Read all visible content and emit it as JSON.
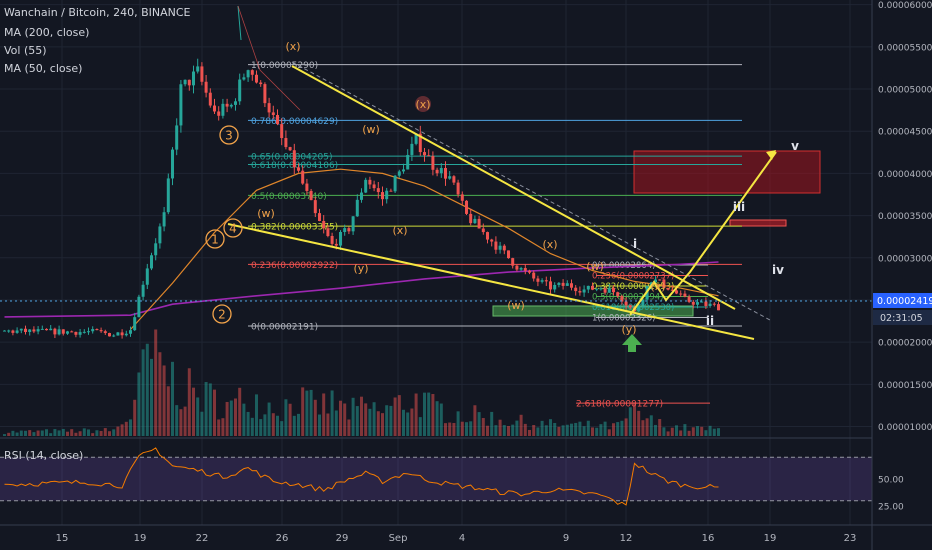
{
  "header": {
    "title": "Wanchain / Bitcoin, 240, BINANCE",
    "indicators": [
      "MA (200, close)",
      "Vol (55)",
      "MA (50, close)"
    ]
  },
  "rsi_panel": {
    "label": "RSI (14, close)",
    "ticks": [
      "50.00",
      "25.00"
    ]
  },
  "price_labels": {
    "current": "0.00002419",
    "countdown": "02:31:05"
  },
  "colors": {
    "background": "#131722",
    "up": "#26a69a",
    "down": "#ef5350",
    "trendline": "#f5e642",
    "ma200": "#9c27b0",
    "ma50": "#e0862a",
    "wave": "#f0a24a",
    "rsi": "#f57c00",
    "rsi_band": "#7e57c2"
  },
  "chart_data": {
    "type": "candlestick",
    "symbol": "Wanchain / Bitcoin",
    "interval": "240",
    "exchange": "BINANCE",
    "x_ticks": [
      "15",
      "19",
      "22",
      "26",
      "29",
      "Sep",
      "4",
      "9",
      "12",
      "16",
      "19",
      "23"
    ],
    "y_ticks": [
      "0.00006000",
      "0.00005500",
      "0.00005000",
      "0.00004500",
      "0.00004000",
      "0.00003500",
      "0.00003000",
      "0.00002500",
      "0.00002000",
      "0.00001500",
      "0.00001000"
    ],
    "ylim": [
      6.7e-06,
      6.02e-05
    ],
    "price_path": [
      [
        0,
        2.13e-05
      ],
      [
        22,
        2.12e-05
      ],
      [
        26,
        2.09e-05
      ],
      [
        30,
        2.15e-05
      ],
      [
        34,
        2.9e-05
      ],
      [
        38,
        3.5e-05
      ],
      [
        42,
        5e-05
      ],
      [
        46,
        5.2e-05
      ],
      [
        50,
        4.7e-05
      ],
      [
        54,
        4.8e-05
      ],
      [
        58,
        5.29e-05
      ],
      [
        62,
        4.9e-05
      ],
      [
        66,
        4.4e-05
      ],
      [
        70,
        4e-05
      ],
      [
        74,
        3.5e-05
      ],
      [
        78,
        3.15e-05
      ],
      [
        82,
        3.35e-05
      ],
      [
        86,
        3.95e-05
      ],
      [
        90,
        3.7e-05
      ],
      [
        94,
        4e-05
      ],
      [
        98,
        4.4e-05
      ],
      [
        102,
        4.1e-05
      ],
      [
        106,
        3.95e-05
      ],
      [
        110,
        3.5e-05
      ],
      [
        114,
        3.3e-05
      ],
      [
        118,
        3.1e-05
      ],
      [
        122,
        2.9e-05
      ],
      [
        126,
        2.75e-05
      ],
      [
        130,
        2.65e-05
      ],
      [
        134,
        2.68e-05
      ],
      [
        138,
        2.62e-05
      ],
      [
        142,
        2.65e-05
      ],
      [
        146,
        2.58e-05
      ],
      [
        150,
        2.35e-05
      ],
      [
        154,
        2.75e-05
      ],
      [
        158,
        2.65e-05
      ],
      [
        162,
        2.5e-05
      ],
      [
        166,
        2.45e-05
      ],
      [
        170,
        2.42e-05
      ]
    ],
    "volume_path": [
      [
        0,
        0.05
      ],
      [
        26,
        0.07
      ],
      [
        30,
        0.25
      ],
      [
        32,
        0.55
      ],
      [
        34,
        1.0
      ],
      [
        38,
        0.8
      ],
      [
        42,
        0.6
      ],
      [
        46,
        0.5
      ],
      [
        50,
        0.45
      ],
      [
        54,
        0.35
      ],
      [
        58,
        0.5
      ],
      [
        62,
        0.4
      ],
      [
        66,
        0.35
      ],
      [
        70,
        0.45
      ],
      [
        74,
        0.35
      ],
      [
        78,
        0.4
      ],
      [
        82,
        0.3
      ],
      [
        86,
        0.35
      ],
      [
        90,
        0.3
      ],
      [
        94,
        0.4
      ],
      [
        98,
        0.45
      ],
      [
        102,
        0.35
      ],
      [
        106,
        0.3
      ],
      [
        110,
        0.25
      ],
      [
        114,
        0.25
      ],
      [
        118,
        0.2
      ],
      [
        122,
        0.18
      ],
      [
        126,
        0.15
      ],
      [
        130,
        0.14
      ],
      [
        134,
        0.13
      ],
      [
        138,
        0.13
      ],
      [
        142,
        0.12
      ],
      [
        146,
        0.12
      ],
      [
        150,
        0.3
      ],
      [
        152,
        0.22
      ],
      [
        154,
        0.18
      ],
      [
        158,
        0.12
      ],
      [
        162,
        0.1
      ],
      [
        170,
        0.08
      ]
    ],
    "ma200_path": [
      [
        0,
        2.3e-05
      ],
      [
        30,
        2.32e-05
      ],
      [
        40,
        2.45e-05
      ],
      [
        60,
        2.55e-05
      ],
      [
        80,
        2.64e-05
      ],
      [
        100,
        2.75e-05
      ],
      [
        120,
        2.83e-05
      ],
      [
        140,
        2.88e-05
      ],
      [
        160,
        2.92e-05
      ],
      [
        170,
        2.95e-05
      ]
    ],
    "ma50_path": [
      [
        30,
        2.15e-05
      ],
      [
        40,
        2.7e-05
      ],
      [
        50,
        3.3e-05
      ],
      [
        60,
        3.8e-05
      ],
      [
        70,
        4e-05
      ],
      [
        80,
        4.05e-05
      ],
      [
        90,
        4e-05
      ],
      [
        100,
        3.85e-05
      ],
      [
        110,
        3.6e-05
      ],
      [
        120,
        3.35e-05
      ],
      [
        130,
        3.05e-05
      ],
      [
        140,
        2.85e-05
      ],
      [
        150,
        2.72e-05
      ],
      [
        160,
        2.65e-05
      ],
      [
        170,
        2.55e-05
      ]
    ],
    "rsi_path": [
      [
        0,
        45
      ],
      [
        20,
        47
      ],
      [
        28,
        44
      ],
      [
        32,
        70
      ],
      [
        36,
        78
      ],
      [
        40,
        62
      ],
      [
        46,
        58
      ],
      [
        52,
        52
      ],
      [
        58,
        60
      ],
      [
        64,
        48
      ],
      [
        70,
        45
      ],
      [
        76,
        40
      ],
      [
        82,
        50
      ],
      [
        86,
        55
      ],
      [
        90,
        48
      ],
      [
        96,
        56
      ],
      [
        100,
        50
      ],
      [
        106,
        45
      ],
      [
        112,
        42
      ],
      [
        118,
        38
      ],
      [
        124,
        36
      ],
      [
        130,
        40
      ],
      [
        136,
        38
      ],
      [
        142,
        35
      ],
      [
        148,
        25
      ],
      [
        150,
        65
      ],
      [
        154,
        55
      ],
      [
        158,
        48
      ],
      [
        162,
        44
      ],
      [
        170,
        42
      ]
    ],
    "rsi_ylim": [
      15,
      85
    ],
    "fib_levels": [
      {
        "label": "1(0.00005290)",
        "value": 5.29e-05
      },
      {
        "label": "0.786(0.00004629)",
        "value": 4.629e-05
      },
      {
        "label": "0.65(0.00004205)",
        "value": 4.205e-05
      },
      {
        "label": "0.618(0.00004106)",
        "value": 4.106e-05
      },
      {
        "label": "0.5(0.00003740)",
        "value": 3.74e-05
      },
      {
        "label": "0.382(0.00003375)",
        "value": 3.375e-05
      },
      {
        "label": "0.236(0.00002922)",
        "value": 2.922e-05
      },
      {
        "label": "0(0.00002191)",
        "value": 2.191e-05
      }
    ],
    "fib_lower_label": "2.618(0.00001277)",
    "small_fib_labels": [
      "0(0.00002864)",
      "0.236(0.00002737)",
      "0.382(0.00002653)",
      "0.5(0.00002594)",
      "0.618(0.00002530)",
      "1(0.00002326)"
    ],
    "wave_labels": [
      "(x)",
      "(w)",
      "(x)",
      "(w)",
      "(x)",
      "(y)",
      "(w)",
      "(x)",
      "(w)",
      "(x)",
      "(y)"
    ],
    "circled_labels": [
      "3",
      "4",
      "1",
      "2"
    ],
    "roman_labels": [
      "i",
      "ii",
      "iii",
      "iv",
      "v"
    ]
  }
}
